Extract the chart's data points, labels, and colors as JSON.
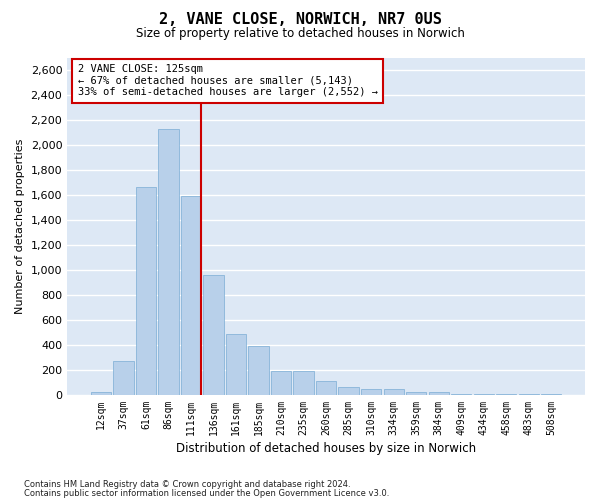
{
  "title1": "2, VANE CLOSE, NORWICH, NR7 0US",
  "title2": "Size of property relative to detached houses in Norwich",
  "xlabel": "Distribution of detached houses by size in Norwich",
  "ylabel": "Number of detached properties",
  "categories": [
    "12sqm",
    "37sqm",
    "61sqm",
    "86sqm",
    "111sqm",
    "136sqm",
    "161sqm",
    "185sqm",
    "210sqm",
    "235sqm",
    "260sqm",
    "285sqm",
    "310sqm",
    "334sqm",
    "359sqm",
    "384sqm",
    "409sqm",
    "434sqm",
    "458sqm",
    "483sqm",
    "508sqm"
  ],
  "values": [
    25,
    270,
    1660,
    2130,
    1590,
    960,
    490,
    390,
    195,
    195,
    115,
    65,
    50,
    50,
    25,
    20,
    10,
    8,
    5,
    8,
    5
  ],
  "bar_color": "#b8d0ea",
  "bar_edge_color": "#7aadd4",
  "vline_color": "#cc0000",
  "vline_x_index": 4,
  "annotation_line1": "2 VANE CLOSE: 125sqm",
  "annotation_line2": "← 67% of detached houses are smaller (5,143)",
  "annotation_line3": "33% of semi-detached houses are larger (2,552) →",
  "annotation_box_facecolor": "#ffffff",
  "annotation_box_edgecolor": "#cc0000",
  "plot_bg_color": "#dde8f5",
  "grid_color": "#ffffff",
  "footer1": "Contains HM Land Registry data © Crown copyright and database right 2024.",
  "footer2": "Contains public sector information licensed under the Open Government Licence v3.0.",
  "ylim": [
    0,
    2700
  ],
  "yticks": [
    0,
    200,
    400,
    600,
    800,
    1000,
    1200,
    1400,
    1600,
    1800,
    2000,
    2200,
    2400,
    2600
  ],
  "fig_width": 6.0,
  "fig_height": 5.0,
  "dpi": 100
}
